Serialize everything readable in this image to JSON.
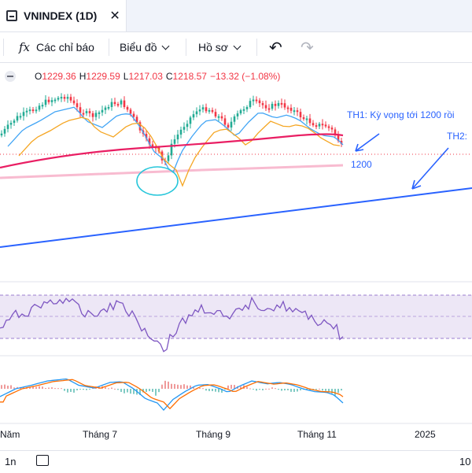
{
  "tab": {
    "title": "VNINDEX (1D)",
    "close": "✕"
  },
  "toolbar": {
    "indicators": "Các chỉ báo",
    "indicators_icon": "fx",
    "chart_type": "Biểu đồ",
    "profile": "Hồ sơ",
    "undo": "↶",
    "redo": "↷"
  },
  "legend": {
    "o_label": "O",
    "o": "1229.36",
    "h_label": "H",
    "h": "1229.59",
    "l_label": "L",
    "l": "1217.03",
    "c_label": "C",
    "c": "1218.57",
    "change": "−13.32 (−1.08%)"
  },
  "annotations": {
    "th1": "TH1: Kỳ vọng tới 1200 rồi",
    "th2": "TH2:",
    "level": "1200"
  },
  "time_axis": [
    "Năm",
    "Tháng 7",
    "Tháng 9",
    "Tháng 11",
    "2025"
  ],
  "bottom": {
    "range": "1n",
    "right_text": "10"
  },
  "colors": {
    "up": "#22ab94",
    "down": "#f23645",
    "ma_long": "#e91e63",
    "ma_mid": "#f5a623",
    "ma_short": "#42a5f5",
    "trend": "#2962ff",
    "rsi": "#7e57c2"
  }
}
